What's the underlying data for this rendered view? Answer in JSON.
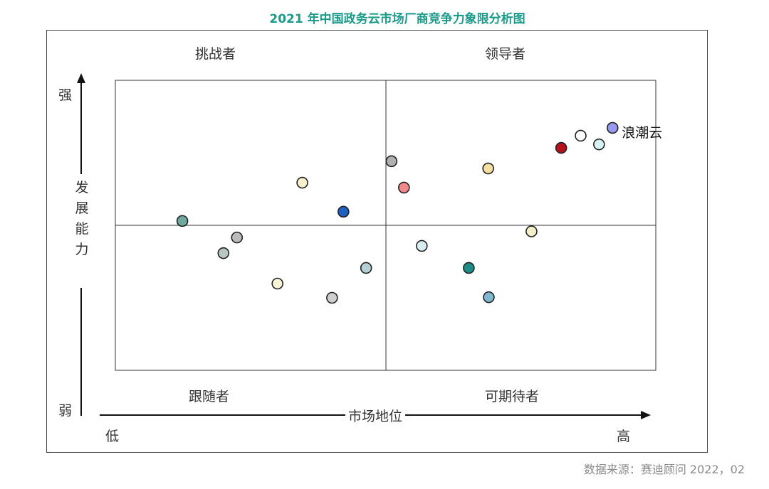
{
  "title": "2021 年中国政务云市场厂商竞争力象限分析图",
  "quadrants": {
    "top_left": "挑战者",
    "top_right": "领导者",
    "bottom_left": "跟随者",
    "bottom_right": "可期待者"
  },
  "y_axis": {
    "label": "发展能力",
    "label_chars": [
      "发",
      "展",
      "能",
      "力"
    ],
    "high": "强",
    "low": "弱"
  },
  "x_axis": {
    "label": "市场地位",
    "low": "低",
    "high": "高"
  },
  "source": "数据来源：赛迪顾问   2022，02",
  "chart_data": {
    "type": "scatter",
    "title": "2021 年中国政务云市场厂商竞争力象限分析图",
    "xlabel": "市场地位",
    "ylabel": "发展能力",
    "xlim": [
      0,
      100
    ],
    "ylim": [
      0,
      100
    ],
    "x_divider": 50,
    "y_divider": 50,
    "grid": false,
    "points": [
      {
        "x": 92.0,
        "y": 83.6,
        "color": "#9999ee",
        "label": "浪潮云"
      },
      {
        "x": 89.5,
        "y": 77.9,
        "color": "#d6f2f2"
      },
      {
        "x": 86.1,
        "y": 80.9,
        "color": "#ffffff"
      },
      {
        "x": 82.5,
        "y": 76.7,
        "color": "#b5121b"
      },
      {
        "x": 69.0,
        "y": 69.6,
        "color": "#f5dfa0"
      },
      {
        "x": 53.4,
        "y": 63.0,
        "color": "#f08a8a"
      },
      {
        "x": 51.1,
        "y": 72.1,
        "color": "#b0b0b0"
      },
      {
        "x": 42.2,
        "y": 54.7,
        "color": "#1f5fbf"
      },
      {
        "x": 34.6,
        "y": 64.7,
        "color": "#f8efcc"
      },
      {
        "x": 12.4,
        "y": 51.5,
        "color": "#6fa89e"
      },
      {
        "x": 22.5,
        "y": 45.8,
        "color": "#bcbcbc"
      },
      {
        "x": 20.0,
        "y": 40.4,
        "color": "#b8c6c4"
      },
      {
        "x": 30.0,
        "y": 29.9,
        "color": "#f8f5d8"
      },
      {
        "x": 40.1,
        "y": 25.0,
        "color": "#cfcfcf"
      },
      {
        "x": 46.4,
        "y": 35.3,
        "color": "#b6d1d6"
      },
      {
        "x": 56.7,
        "y": 42.9,
        "color": "#d8ecf4"
      },
      {
        "x": 65.4,
        "y": 35.3,
        "color": "#1d8c86"
      },
      {
        "x": 69.1,
        "y": 25.2,
        "color": "#7fb8d0"
      },
      {
        "x": 77.0,
        "y": 47.9,
        "color": "#f4efcb"
      }
    ]
  }
}
